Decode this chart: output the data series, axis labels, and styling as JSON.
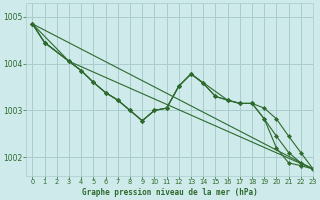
{
  "background_color": "#ceeaea",
  "grid_color": "#aacccc",
  "line_color": "#2d6a2d",
  "title": "Graphe pression niveau de la mer (hPa)",
  "xlim": [
    -0.5,
    23
  ],
  "ylim": [
    1001.6,
    1005.3
  ],
  "yticks": [
    1002,
    1003,
    1004,
    1005
  ],
  "xticks": [
    0,
    1,
    2,
    3,
    4,
    5,
    6,
    7,
    8,
    9,
    10,
    11,
    12,
    13,
    14,
    15,
    16,
    17,
    18,
    19,
    20,
    21,
    22,
    23
  ],
  "series": [
    {
      "x": [
        0,
        1,
        3,
        4,
        5,
        6,
        7,
        8,
        9,
        10,
        11,
        12,
        13,
        14,
        15,
        16,
        17,
        18,
        19,
        20,
        21,
        22,
        23
      ],
      "y": [
        1004.85,
        1004.45,
        1004.05,
        1003.85,
        1003.6,
        1003.38,
        1003.22,
        1003.0,
        1002.78,
        1003.0,
        1003.05,
        1003.52,
        1003.78,
        1003.58,
        1003.3,
        1003.22,
        1003.15,
        1003.15,
        1002.82,
        1002.2,
        1001.88,
        1001.82,
        1001.75
      ]
    },
    {
      "x": [
        0,
        1,
        3,
        4,
        5,
        6,
        7,
        8,
        9,
        10,
        11,
        12,
        13,
        14,
        15,
        16,
        17,
        18,
        19,
        20,
        21,
        22,
        23
      ],
      "y": [
        1004.85,
        1004.45,
        1004.05,
        1003.85,
        1003.6,
        1003.38,
        1003.22,
        1003.0,
        1002.78,
        1003.0,
        1003.05,
        1003.52,
        1003.78,
        1003.58,
        1003.3,
        1003.22,
        1003.15,
        1003.15,
        1002.82,
        1002.45,
        1002.1,
        1001.88,
        1001.75
      ]
    },
    {
      "x": [
        0,
        1,
        3,
        4,
        5,
        6,
        7,
        8,
        9,
        10,
        11,
        12,
        13,
        16,
        17,
        18,
        19,
        20,
        21,
        22,
        23
      ],
      "y": [
        1004.85,
        1004.45,
        1004.05,
        1003.85,
        1003.6,
        1003.38,
        1003.22,
        1003.0,
        1002.78,
        1003.0,
        1003.05,
        1003.52,
        1003.78,
        1003.22,
        1003.15,
        1003.15,
        1003.05,
        1002.82,
        1002.45,
        1002.1,
        1001.75
      ]
    },
    {
      "x": [
        0,
        3,
        23
      ],
      "y": [
        1004.85,
        1004.05,
        1001.75
      ]
    },
    {
      "x": [
        0,
        23
      ],
      "y": [
        1004.85,
        1001.75
      ]
    }
  ]
}
